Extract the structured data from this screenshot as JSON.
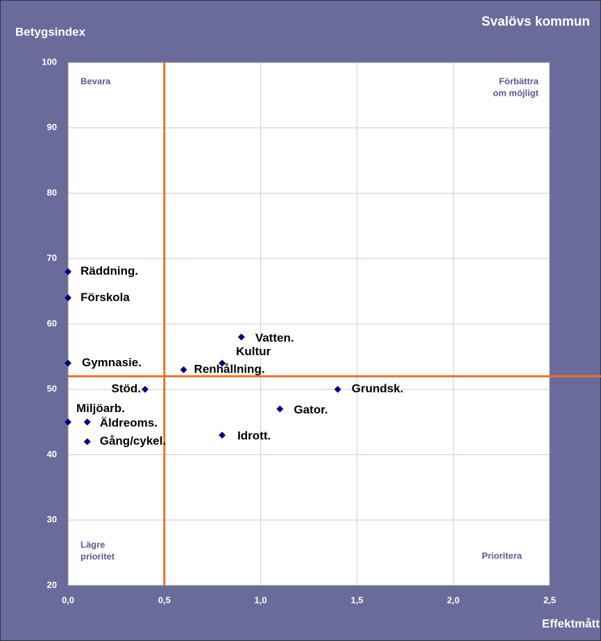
{
  "chart_data": {
    "type": "scatter",
    "title": "Svalövs kommun",
    "ylabel": "Betygsindex",
    "xlabel": "Effektmått",
    "points": [
      {
        "label": "Räddning.",
        "x": 0,
        "y": 68
      },
      {
        "label": "Förskola",
        "x": 0,
        "y": 64
      },
      {
        "label": "Gymnasie.",
        "x": 0,
        "y": 54
      },
      {
        "label": "Miljöarb.",
        "x": 0,
        "y": 45
      },
      {
        "label": "Äldreoms.",
        "x": 0.1,
        "y": 45
      },
      {
        "label": "Gång/cykel.",
        "x": 0.1,
        "y": 42
      },
      {
        "label": "Stöd.",
        "x": 0.4,
        "y": 50
      },
      {
        "label": "Renhållning.",
        "x": 0.6,
        "y": 53
      },
      {
        "label": "Kultur",
        "x": 0.8,
        "y": 54
      },
      {
        "label": "Vatten.",
        "x": 0.9,
        "y": 58
      },
      {
        "label": "Idrott.",
        "x": 0.8,
        "y": 43
      },
      {
        "label": "Gator.",
        "x": 1.1,
        "y": 47
      },
      {
        "label": "Grundsk.",
        "x": 1.4,
        "y": 50
      }
    ],
    "color": "#000080",
    "reference_lines": {
      "x": 0.5,
      "y": 52,
      "color": "#f07020"
    },
    "annotations": [
      {
        "lines": [
          "Bevara"
        ],
        "corner": "top-left"
      },
      {
        "lines": [
          "Förbättra",
          "om möjligt"
        ],
        "corner": "top-right"
      },
      {
        "lines": [
          "Lägre",
          "prioritet"
        ],
        "corner": "bottom-left"
      },
      {
        "lines": [
          "Prioritera"
        ],
        "corner": "bottom-right"
      }
    ],
    "xlim": [
      0,
      2.5
    ],
    "xticks": [
      {
        "value": 0,
        "label": "0,0"
      },
      {
        "value": 0.5,
        "label": "0,5"
      },
      {
        "value": 1,
        "label": "1,0"
      },
      {
        "value": 1.5,
        "label": "1,5"
      },
      {
        "value": 2,
        "label": "2,0"
      },
      {
        "value": 2.5,
        "label": "2,5"
      }
    ],
    "ylim": [
      20,
      100
    ],
    "yticks": [
      20,
      30,
      40,
      50,
      60,
      70,
      80,
      90,
      100
    ],
    "grid": true
  }
}
